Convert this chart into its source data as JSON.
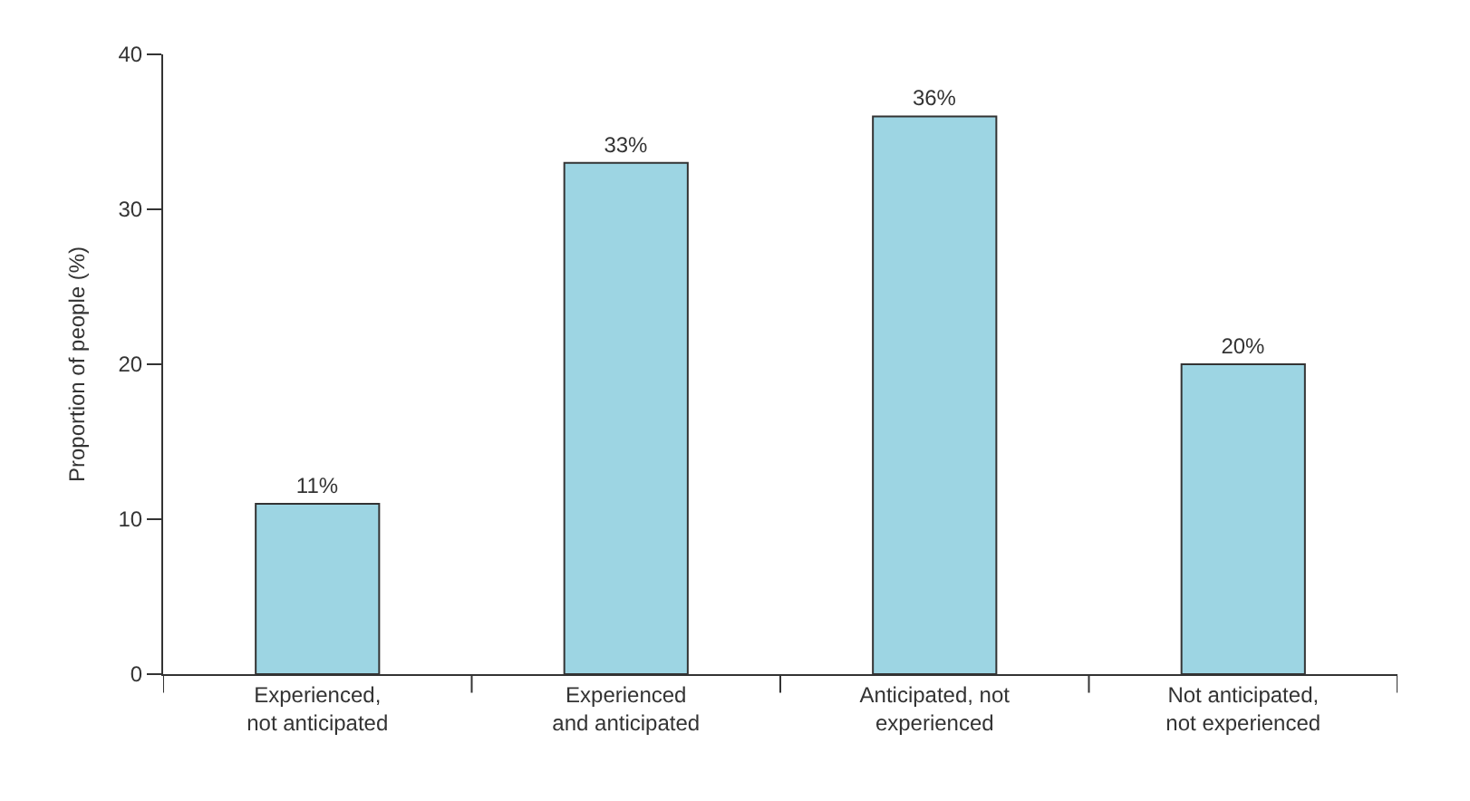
{
  "chart_data": {
    "type": "bar",
    "ylabel": "Proportion of people (%)",
    "categories": [
      "Experienced,\nnot anticipated",
      "Experienced\nand anticipated",
      "Anticipated, not\nexperienced",
      "Not anticipated,\nnot experienced"
    ],
    "values": [
      11,
      33,
      36,
      20
    ],
    "value_labels": [
      "11%",
      "33%",
      "36%",
      "20%"
    ],
    "color": "#9dd5e3",
    "ylim": [
      0,
      40
    ],
    "yticks": [
      0,
      10,
      20,
      30,
      40
    ]
  }
}
